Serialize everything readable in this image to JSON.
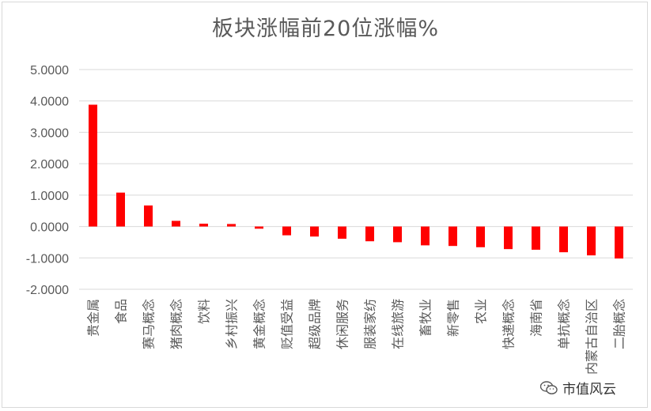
{
  "chart_data": {
    "type": "bar",
    "title": "板块涨幅前20位涨幅%",
    "categories": [
      "贵金属",
      "食品",
      "赛马概念",
      "猪肉概念",
      "饮料",
      "乡村振兴",
      "黄金概念",
      "贬值受益",
      "超级品牌",
      "休闲服务",
      "服装家纺",
      "在线旅游",
      "畜牧业",
      "新零售",
      "农业",
      "快递概念",
      "海南省",
      "单抗概念",
      "内蒙古自治区",
      "二胎概念"
    ],
    "values": [
      3.88,
      1.08,
      0.67,
      0.18,
      0.09,
      0.08,
      -0.07,
      -0.28,
      -0.32,
      -0.39,
      -0.47,
      -0.5,
      -0.6,
      -0.62,
      -0.66,
      -0.72,
      -0.74,
      -0.82,
      -0.92,
      -1.02
    ],
    "yticks": [
      "5.0000",
      "4.0000",
      "3.0000",
      "2.0000",
      "1.0000",
      "0.0000",
      "-1.0000",
      "-2.0000"
    ],
    "ylim": [
      -2,
      5
    ],
    "grid": true,
    "legend": "none",
    "bar_color": "#ff0000",
    "xlabel": "",
    "ylabel": ""
  },
  "watermark": {
    "text": "市值风云",
    "icon": "wechat-icon"
  }
}
